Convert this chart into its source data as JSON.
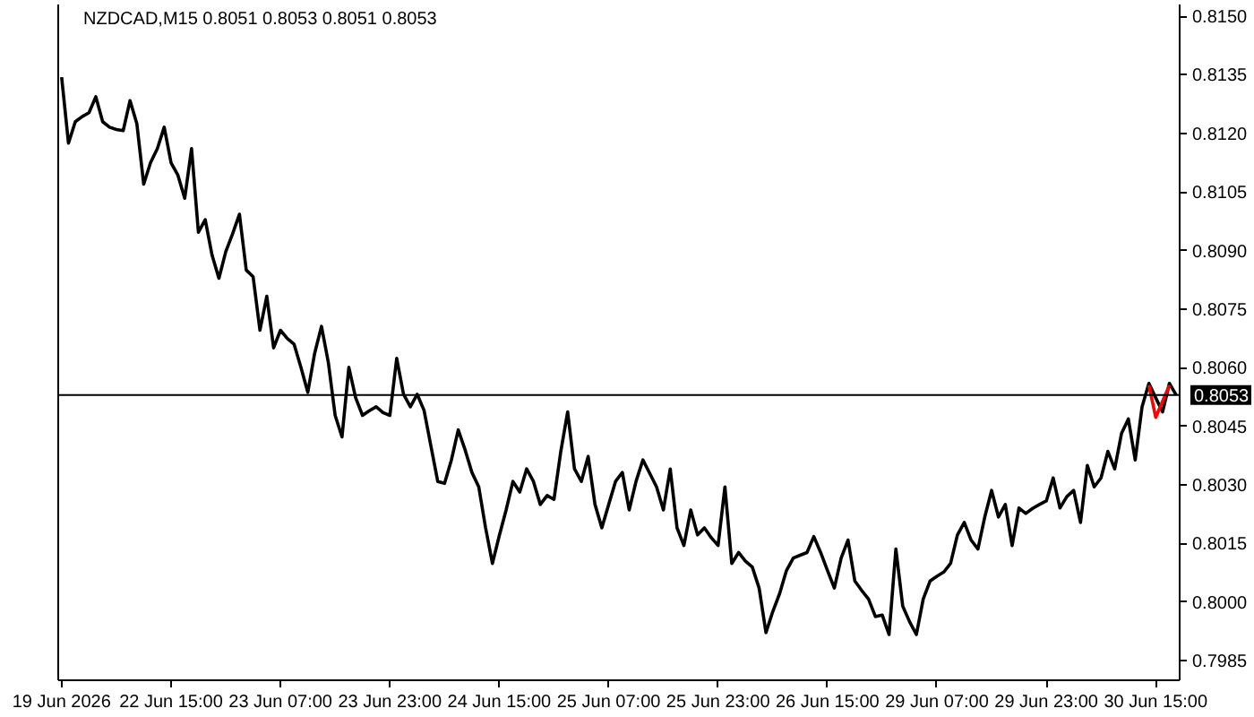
{
  "chart_data": {
    "type": "line",
    "title": "NZDCAD,M15  0.8051 0.8053 0.8051 0.8053",
    "categories": [
      "19 Jun 2026",
      null,
      null,
      null,
      null,
      null,
      null,
      null,
      null,
      null,
      null,
      null,
      null,
      null,
      null,
      null,
      "22 Jun 15:00",
      null,
      null,
      null,
      null,
      null,
      null,
      null,
      null,
      null,
      null,
      null,
      null,
      null,
      null,
      null,
      "23 Jun 07:00",
      null,
      null,
      null,
      null,
      null,
      null,
      null,
      null,
      null,
      null,
      null,
      null,
      null,
      null,
      null,
      "23 Jun 23:00",
      null,
      null,
      null,
      null,
      null,
      null,
      null,
      null,
      null,
      null,
      null,
      null,
      null,
      null,
      null,
      "24 Jun 15:00",
      null,
      null,
      null,
      null,
      null,
      null,
      null,
      null,
      null,
      null,
      null,
      null,
      null,
      null,
      null,
      "25 Jun 07:00",
      null,
      null,
      null,
      null,
      null,
      null,
      null,
      null,
      null,
      null,
      null,
      null,
      null,
      null,
      null,
      "25 Jun 23:00",
      null,
      null,
      null,
      null,
      null,
      null,
      null,
      null,
      null,
      null,
      null,
      null,
      null,
      null,
      null,
      "26 Jun 15:00",
      null,
      null,
      null,
      null,
      null,
      null,
      null,
      null,
      null,
      null,
      null,
      null,
      null,
      null,
      null,
      "29 Jun 07:00",
      null,
      null,
      null,
      null,
      null,
      null,
      null,
      null,
      null,
      null,
      null,
      null,
      null,
      null,
      null,
      "29 Jun 23:00",
      null,
      null,
      null,
      null,
      null,
      null,
      null,
      null,
      null,
      null,
      null,
      null,
      null,
      null,
      null,
      "30 Jun 15:00",
      null,
      null,
      null
    ],
    "ylim": [
      0.798,
      0.8153
    ],
    "yticks": [
      {
        "value": 0.7985,
        "label": "0.7985"
      },
      {
        "value": 0.8,
        "label": "0.8000"
      },
      {
        "value": 0.8015,
        "label": "0.8015"
      },
      {
        "value": 0.803,
        "label": "0.8030"
      },
      {
        "value": 0.8045,
        "label": "0.8045"
      },
      {
        "value": 0.806,
        "label": "0.8060"
      },
      {
        "value": 0.8075,
        "label": "0.8075"
      },
      {
        "value": 0.809,
        "label": "0.8090"
      },
      {
        "value": 0.8105,
        "label": "0.8105"
      },
      {
        "value": 0.812,
        "label": "0.8120"
      },
      {
        "value": 0.8135,
        "label": "0.8135"
      },
      {
        "value": 0.815,
        "label": "0.8150"
      }
    ],
    "ref_lines": [
      {
        "axis": "y",
        "value": 0.8053,
        "label": "0.8053",
        "color": "#000000"
      }
    ],
    "series": [
      {
        "color": "#000000",
        "values": [
          0.81344,
          0.81175,
          0.8123,
          0.81243,
          0.81253,
          0.81294,
          0.8123,
          0.81216,
          0.8121,
          0.81207,
          0.81284,
          0.81225,
          0.8107,
          0.81125,
          0.81161,
          0.81216,
          0.81125,
          0.81093,
          0.81034,
          0.81161,
          0.80947,
          0.80979,
          0.80888,
          0.80829,
          0.80897,
          0.80943,
          0.80993,
          0.8085,
          0.80833,
          0.80696,
          0.80783,
          0.80651,
          0.80696,
          0.80675,
          0.8066,
          0.80601,
          0.80537,
          0.80637,
          0.80706,
          0.80614,
          0.80478,
          0.80423,
          0.80601,
          0.80523,
          0.80478,
          0.8049,
          0.805,
          0.80485,
          0.80478,
          0.80624,
          0.80532,
          0.805,
          0.80532,
          0.80491,
          0.804,
          0.80309,
          0.80304,
          0.80364,
          0.80441,
          0.8039,
          0.80332,
          0.80295,
          0.8019,
          0.80099,
          0.8017,
          0.80236,
          0.80309,
          0.80282,
          0.80341,
          0.80309,
          0.8025,
          0.80273,
          0.80263,
          0.80386,
          0.80487,
          0.80341,
          0.80309,
          0.80373,
          0.8025,
          0.8019,
          0.8025,
          0.80309,
          0.80332,
          0.80236,
          0.80309,
          0.80364,
          0.8033,
          0.80295,
          0.80236,
          0.80341,
          0.8019,
          0.80145,
          0.80236,
          0.80172,
          0.8019,
          0.80165,
          0.80145,
          0.80295,
          0.80099,
          0.80127,
          0.80105,
          0.8009,
          0.80036,
          0.79922,
          0.79976,
          0.80022,
          0.80081,
          0.80113,
          0.8012,
          0.80127,
          0.80168,
          0.80127,
          0.80081,
          0.80036,
          0.80113,
          0.80159,
          0.80054,
          0.8003,
          0.80008,
          0.79963,
          0.79967,
          0.79917,
          0.80136,
          0.7999,
          0.7995,
          0.79917,
          0.80008,
          0.80054,
          0.80066,
          0.80077,
          0.80099,
          0.80172,
          0.80204,
          0.80159,
          0.80136,
          0.80218,
          0.80286,
          0.80218,
          0.8025,
          0.80145,
          0.80241,
          0.80227,
          0.8024,
          0.8025,
          0.80259,
          0.80318,
          0.80241,
          0.8027,
          0.80286,
          0.80204,
          0.8035,
          0.80295,
          0.80318,
          0.80386,
          0.80341,
          0.80432,
          0.80469,
          0.80364,
          0.805,
          0.8056,
          0.80523,
          0.80487,
          0.8056,
          0.8053
        ]
      },
      {
        "color": "#ff0000",
        "values": [
          null,
          null,
          null,
          null,
          null,
          null,
          null,
          null,
          null,
          null,
          null,
          null,
          null,
          null,
          null,
          null,
          null,
          null,
          null,
          null,
          null,
          null,
          null,
          null,
          null,
          null,
          null,
          null,
          null,
          null,
          null,
          null,
          null,
          null,
          null,
          null,
          null,
          null,
          null,
          null,
          null,
          null,
          null,
          null,
          null,
          null,
          null,
          null,
          null,
          null,
          null,
          null,
          null,
          null,
          null,
          null,
          null,
          null,
          null,
          null,
          null,
          null,
          null,
          null,
          null,
          null,
          null,
          null,
          null,
          null,
          null,
          null,
          null,
          null,
          null,
          null,
          null,
          null,
          null,
          null,
          null,
          null,
          null,
          null,
          null,
          null,
          null,
          null,
          null,
          null,
          null,
          null,
          null,
          null,
          null,
          null,
          null,
          null,
          null,
          null,
          null,
          null,
          null,
          null,
          null,
          null,
          null,
          null,
          null,
          null,
          null,
          null,
          null,
          null,
          null,
          null,
          null,
          null,
          null,
          null,
          null,
          null,
          null,
          null,
          null,
          null,
          null,
          null,
          null,
          null,
          null,
          null,
          null,
          null,
          null,
          null,
          null,
          null,
          null,
          null,
          null,
          null,
          null,
          null,
          null,
          null,
          null,
          null,
          null,
          null,
          null,
          null,
          null,
          null,
          null,
          null,
          null,
          null,
          null,
          0.80555,
          0.80473,
          0.80514,
          0.80555,
          null
        ]
      }
    ]
  }
}
